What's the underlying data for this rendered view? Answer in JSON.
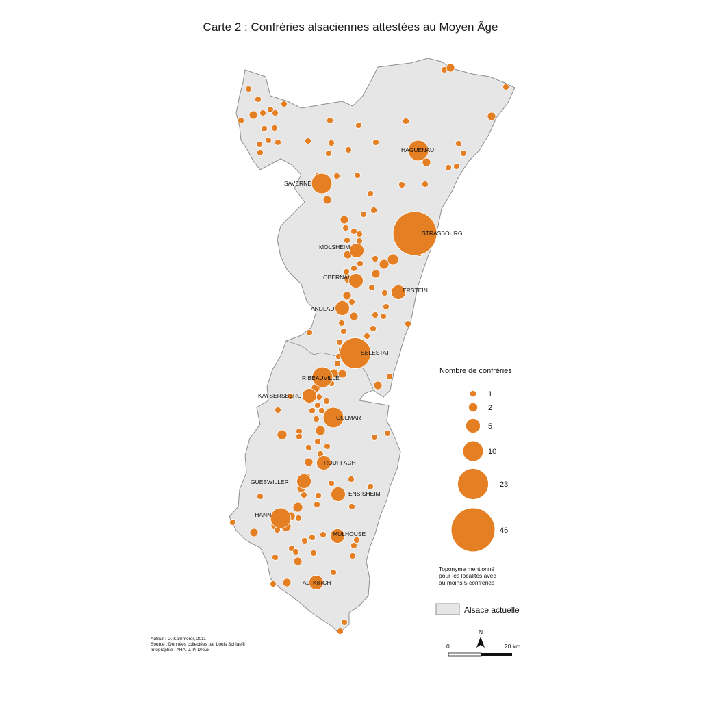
{
  "title": "Carte 2 : Confréries alsaciennes attestées au Moyen Âge",
  "colors": {
    "dot": "#e57f24",
    "dot_stroke": "#ffffff",
    "region_fill": "#e6e6e6",
    "region_stroke": "#8c8c8c"
  },
  "towns": [
    {
      "name": "HAGUENAU",
      "count": 10
    },
    {
      "name": "SAVERNE",
      "count": 10
    },
    {
      "name": "STRASBOURG",
      "count": 46
    },
    {
      "name": "MOLSHEIM",
      "count": 5
    },
    {
      "name": "OBERNAI",
      "count": 5
    },
    {
      "name": "ERSTEIN",
      "count": 5
    },
    {
      "name": "ANDLAU",
      "count": 5
    },
    {
      "name": "SELESTAT",
      "count": 23
    },
    {
      "name": "RIBEAUVILLÉ",
      "count": 10
    },
    {
      "name": "KAYSERSBERG",
      "count": 5
    },
    {
      "name": "COLMAR",
      "count": 10
    },
    {
      "name": "ROUFFACH",
      "count": 5
    },
    {
      "name": "GUEBWILLER",
      "count": 5
    },
    {
      "name": "ENSISHEIM",
      "count": 5
    },
    {
      "name": "THANN",
      "count": 10
    },
    {
      "name": "MULHOUSE",
      "count": 5
    },
    {
      "name": "ALTKIRCH",
      "count": 5
    }
  ],
  "legend": {
    "title": "Nombre de confréries",
    "sizes": [
      "1",
      "2",
      "5",
      "10",
      "23",
      "46"
    ],
    "note_lines": [
      "Toponyme mentionné",
      "pour les localités avec",
      "au moins 5 confréries"
    ],
    "area_label": "Alsace actuelle"
  },
  "scale": {
    "start": "0",
    "end": "20 km",
    "north": "N"
  },
  "credits": [
    "Auteur : O. Kammerer, 2011",
    "Source : Données collectées par Louis Schlaefli",
    "Infographie : AHA, J. P. Droux"
  ]
}
